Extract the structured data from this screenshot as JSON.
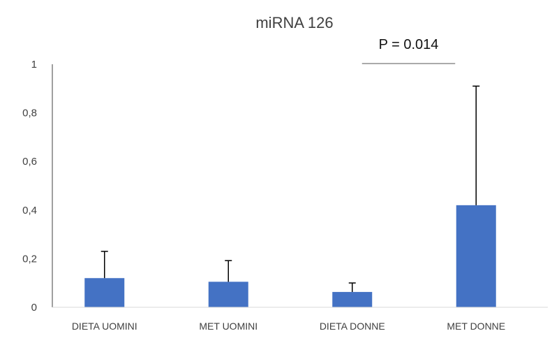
{
  "chart_data": {
    "type": "bar",
    "title": "miRNA 126",
    "categories": [
      "DIETA UOMINI",
      "MET UOMINI",
      "DIETA DONNE",
      "MET DONNE"
    ],
    "values": [
      0.12,
      0.105,
      0.063,
      0.42
    ],
    "error_upper": [
      0.23,
      0.192,
      0.1,
      0.91
    ],
    "ylim": [
      0,
      1
    ],
    "yticks": [
      "0",
      "0,2",
      "0,4",
      "0,6",
      "0,8",
      "1"
    ],
    "ytick_values": [
      0,
      0.2,
      0.4,
      0.6,
      0.8,
      1
    ],
    "grid": false,
    "bar_color": "#4472C4",
    "annotation": {
      "text": "P = 0.014",
      "from_category": "DIETA DONNE",
      "to_category": "MET DONNE"
    }
  }
}
